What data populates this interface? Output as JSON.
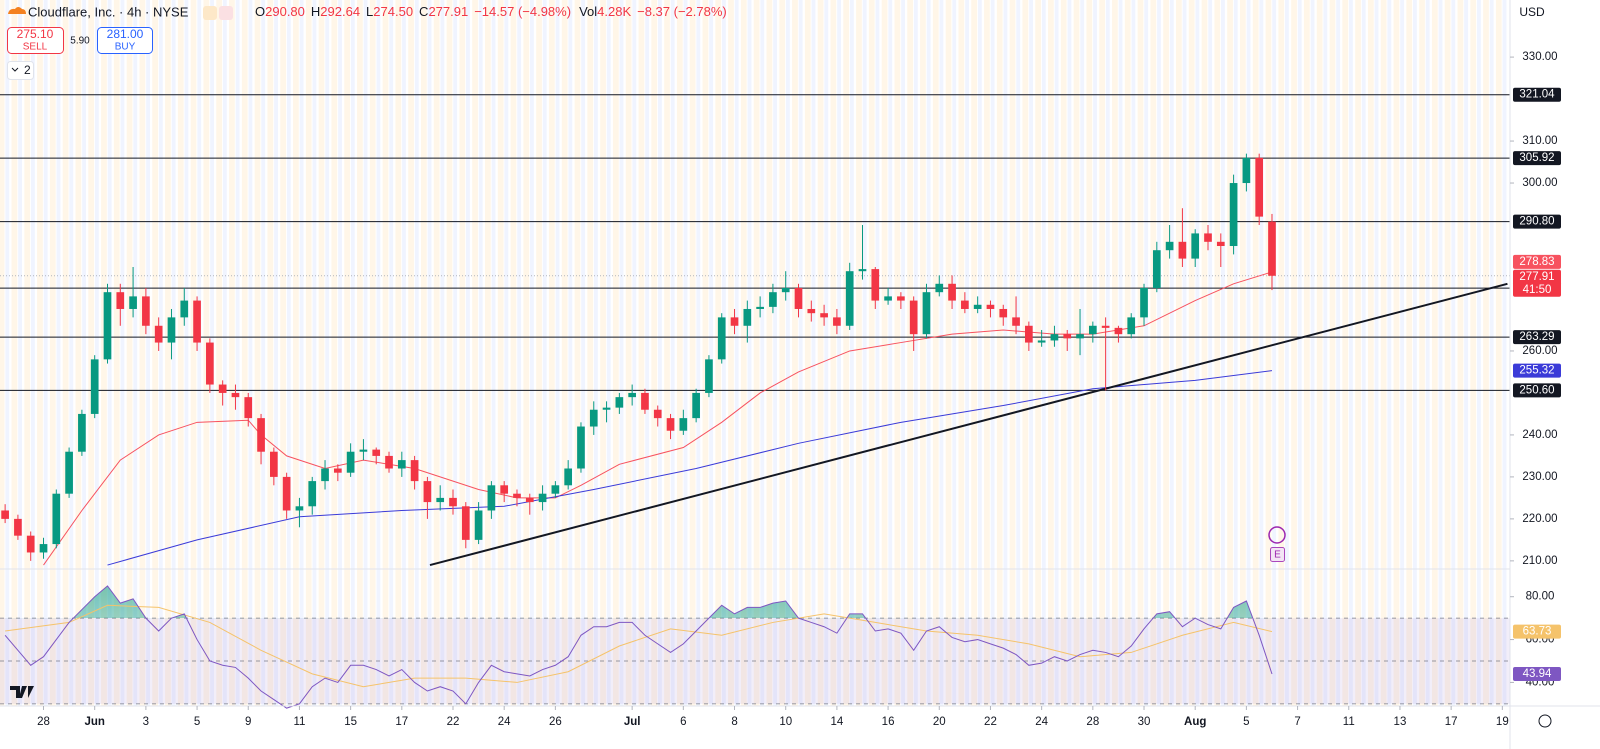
{
  "header": {
    "title": "Cloudflare, Inc. · 4h · NYSE",
    "ohlc": [
      {
        "key": "O",
        "value": "290.80"
      },
      {
        "key": "H",
        "value": "292.64"
      },
      {
        "key": "L",
        "value": "274.50"
      },
      {
        "key": "C",
        "value": "277.91"
      }
    ],
    "change": "−14.57 (−4.98%)",
    "volume_key": "Vol",
    "volume": "4.28K",
    "volume_change": "−8.37 (−2.78%)"
  },
  "trade": {
    "sell_price": "275.10",
    "sell": "SELL",
    "spread": "5.90",
    "buy_price": "281.00",
    "buy": "BUY"
  },
  "indicators_count": "2",
  "currency": "USD",
  "countdown": "41:50",
  "earnings_marker": "E",
  "chart_data": {
    "type": "candlestick",
    "up_color": "#089981",
    "down_color": "#f23645",
    "open": [
      222,
      220,
      216,
      212,
      214,
      226,
      236,
      245,
      258,
      274,
      270,
      273,
      266,
      262,
      268,
      272,
      262,
      252,
      250,
      249,
      244,
      236,
      230,
      222,
      223,
      229,
      232,
      231,
      236,
      236.5,
      235,
      232,
      234,
      229,
      224,
      225,
      223,
      215,
      222,
      228,
      226,
      225,
      224,
      226,
      228,
      232,
      242,
      246,
      246.5,
      249,
      250,
      246,
      244,
      241,
      244,
      250,
      258,
      268,
      266,
      270,
      270.5,
      274,
      275,
      270,
      269,
      268,
      266,
      279,
      279.5,
      272,
      273,
      272,
      264,
      274,
      276,
      272,
      270,
      271,
      270,
      268,
      266,
      262,
      262.5,
      264,
      263,
      264,
      266,
      265.5,
      264,
      268,
      275,
      284,
      286,
      282,
      288,
      286,
      285,
      300,
      306,
      290.8
    ],
    "high": [
      223.5,
      221,
      217,
      215.5,
      227,
      237,
      246,
      259,
      276,
      276,
      280,
      275,
      268,
      270,
      275,
      273,
      263,
      253,
      252,
      250,
      245,
      237,
      231,
      225,
      230,
      234,
      233,
      238,
      239,
      237,
      236,
      236,
      235,
      230,
      228,
      227,
      224,
      224,
      229,
      229,
      227,
      226,
      228,
      229,
      234,
      243,
      248,
      248,
      250,
      252,
      251,
      247,
      245,
      246,
      251,
      259,
      269,
      270,
      272,
      273,
      276,
      279,
      276,
      272,
      271,
      270,
      281,
      290,
      280,
      275,
      274,
      273,
      276,
      278,
      278,
      274,
      273,
      272,
      271,
      273,
      267,
      265,
      266,
      265,
      270,
      267,
      268,
      266,
      269,
      276,
      286,
      290,
      294,
      289,
      290,
      288,
      302,
      307,
      307,
      292.64
    ],
    "low": [
      219,
      215,
      210,
      210.5,
      213,
      225,
      235,
      244,
      257,
      266,
      268,
      264,
      260,
      258,
      266,
      260,
      250,
      247,
      246,
      242,
      233,
      228,
      220,
      218,
      221,
      227,
      229,
      230,
      234,
      233,
      231,
      230,
      227,
      220,
      222,
      221,
      213,
      214,
      220,
      224,
      223,
      221,
      222,
      225,
      227,
      231,
      240,
      243,
      245,
      247,
      245,
      242,
      239,
      240,
      243,
      249,
      257,
      264,
      262,
      268,
      269,
      272,
      268,
      267,
      266,
      264,
      265,
      277,
      270,
      271,
      270,
      260,
      263,
      273,
      270,
      269,
      269,
      268,
      266,
      264,
      260,
      261,
      261,
      260,
      259,
      262,
      250.6,
      262,
      263,
      266,
      274,
      282,
      280,
      280,
      284,
      280,
      283,
      298,
      290,
      274.5
    ],
    "close": [
      220,
      216,
      212,
      214,
      226,
      236,
      245,
      258,
      274,
      270,
      273,
      266,
      262,
      268,
      272,
      262,
      252,
      250,
      249,
      244,
      236,
      230,
      222,
      223,
      229,
      232,
      231,
      236,
      236.5,
      235,
      232,
      234,
      229,
      224,
      225,
      223,
      215,
      222,
      228,
      226,
      225,
      224,
      226,
      228,
      232,
      242,
      246,
      246.5,
      249,
      250,
      246,
      244,
      241,
      244,
      250,
      258,
      268,
      266,
      270,
      270.5,
      274,
      275,
      270,
      269,
      268,
      266,
      279,
      279.5,
      272,
      273,
      272,
      264,
      274,
      276,
      272,
      270,
      271,
      270,
      268,
      266,
      262,
      262.5,
      264,
      263,
      264,
      266,
      265.5,
      264,
      268,
      275,
      284,
      286,
      282,
      288,
      286,
      285,
      300,
      306,
      292,
      277.91
    ],
    "xlim": [
      -0.4,
      117.6
    ],
    "xticks": [
      {
        "value": 3,
        "label": "28"
      },
      {
        "value": 7,
        "label": "Jun"
      },
      {
        "value": 11,
        "label": "3"
      },
      {
        "value": 15,
        "label": "5"
      },
      {
        "value": 19,
        "label": "9"
      },
      {
        "value": 23,
        "label": "11"
      },
      {
        "value": 27,
        "label": "15"
      },
      {
        "value": 31,
        "label": "17"
      },
      {
        "value": 35,
        "label": "22"
      },
      {
        "value": 39,
        "label": "24"
      },
      {
        "value": 43,
        "label": "26"
      },
      {
        "value": 49,
        "label": "Jul"
      },
      {
        "value": 53,
        "label": "6"
      },
      {
        "value": 57,
        "label": "8"
      },
      {
        "value": 61,
        "label": "10"
      },
      {
        "value": 65,
        "label": "14"
      },
      {
        "value": 69,
        "label": "16"
      },
      {
        "value": 73,
        "label": "20"
      },
      {
        "value": 77,
        "label": "22"
      },
      {
        "value": 81,
        "label": "24"
      },
      {
        "value": 85,
        "label": "28"
      },
      {
        "value": 89,
        "label": "30"
      },
      {
        "value": 93,
        "label": "Aug"
      },
      {
        "value": 97,
        "label": "5"
      },
      {
        "value": 101,
        "label": "7"
      },
      {
        "value": 105,
        "label": "11"
      },
      {
        "value": 109,
        "label": "13"
      },
      {
        "value": 113,
        "label": "17"
      },
      {
        "value": 117,
        "label": "19"
      }
    ],
    "ylim": [
      208.3,
      343.6
    ],
    "yticks": [
      {
        "value": 330,
        "label": "330.00"
      },
      {
        "value": 310,
        "label": "310.00"
      },
      {
        "value": 300,
        "label": "300.00"
      },
      {
        "value": 260,
        "label": "260.00"
      },
      {
        "value": 240,
        "label": "240.00"
      },
      {
        "value": 230,
        "label": "230.00"
      },
      {
        "value": 220,
        "label": "220.00"
      },
      {
        "value": 210,
        "label": "210.00"
      }
    ],
    "grid": false,
    "levels": [
      321.04,
      305.92,
      {
        "value": 290.8,
        "label": "290.80"
      },
      274.97,
      263.29,
      {
        "value": 250.6,
        "label": "250.60"
      }
    ],
    "trendline": {
      "x": [
        33.2,
        117.4
      ],
      "y": [
        209,
        276
      ]
    },
    "ma_red": {
      "color": "#f7525f",
      "x": [
        3,
        6,
        9,
        12,
        15,
        19,
        20,
        22,
        25,
        28,
        32,
        37,
        40,
        43,
        45,
        48,
        53,
        56,
        59,
        62,
        66,
        70,
        74,
        78,
        82,
        85,
        89,
        93,
        96,
        99
      ],
      "values": [
        209,
        222,
        234,
        240,
        243,
        243.5,
        240,
        235,
        232,
        234,
        232,
        227,
        225,
        225,
        228,
        233,
        237,
        243,
        250,
        255,
        260,
        262,
        264,
        265,
        264,
        264,
        266,
        272,
        276,
        278.83
      ]
    },
    "ma_blue": {
      "color": "#3b3bd8",
      "x": [
        8,
        15,
        23,
        31,
        39,
        46,
        54,
        62,
        70,
        78,
        85,
        93,
        99
      ],
      "values": [
        209,
        215,
        220.5,
        222,
        223,
        227,
        232,
        238,
        243,
        247,
        251,
        253,
        255.32
      ]
    },
    "rsi": {
      "color": "#7e57c2",
      "ylim": [
        29,
        92
      ],
      "yticks": [
        {
          "value": 80,
          "label": "80.00"
        },
        {
          "value": 60,
          "label": "60.00"
        },
        {
          "value": 40,
          "label": "40.00"
        }
      ],
      "bands": [
        70,
        50,
        30
      ],
      "values": [
        62,
        55,
        48,
        52,
        60,
        68,
        74,
        80,
        85,
        77,
        79,
        70,
        64,
        70,
        72,
        60,
        50,
        48,
        47,
        42,
        36,
        32,
        28,
        30,
        38,
        42,
        40,
        48,
        48,
        46,
        43,
        46,
        40,
        36,
        38,
        36,
        30,
        40,
        48,
        45,
        44,
        43,
        46,
        48,
        52,
        62,
        66,
        66,
        68,
        68,
        62,
        58,
        54,
        58,
        64,
        70,
        76,
        72,
        75,
        75,
        77,
        78,
        70,
        68,
        66,
        63,
        72,
        72,
        64,
        65,
        63,
        55,
        64,
        66,
        61,
        59,
        60,
        58,
        56,
        53,
        48,
        49,
        52,
        50,
        53,
        55,
        54,
        52,
        57,
        65,
        72,
        73,
        66,
        70,
        67,
        65,
        75,
        78,
        62,
        43.94
      ],
      "ma": {
        "color": "#f5c36b",
        "x": [
          0,
          5,
          8,
          12,
          16,
          20,
          24,
          28,
          32,
          36,
          40,
          44,
          48,
          52,
          56,
          60,
          64,
          68,
          72,
          76,
          80,
          84,
          88,
          92,
          96,
          99
        ],
        "values": [
          64,
          68,
          76,
          75,
          68,
          55,
          44,
          38,
          42,
          42,
          40,
          45,
          57,
          65,
          62,
          68,
          72,
          68,
          64,
          62,
          58,
          52,
          54,
          62,
          68,
          63.73
        ]
      }
    }
  }
}
